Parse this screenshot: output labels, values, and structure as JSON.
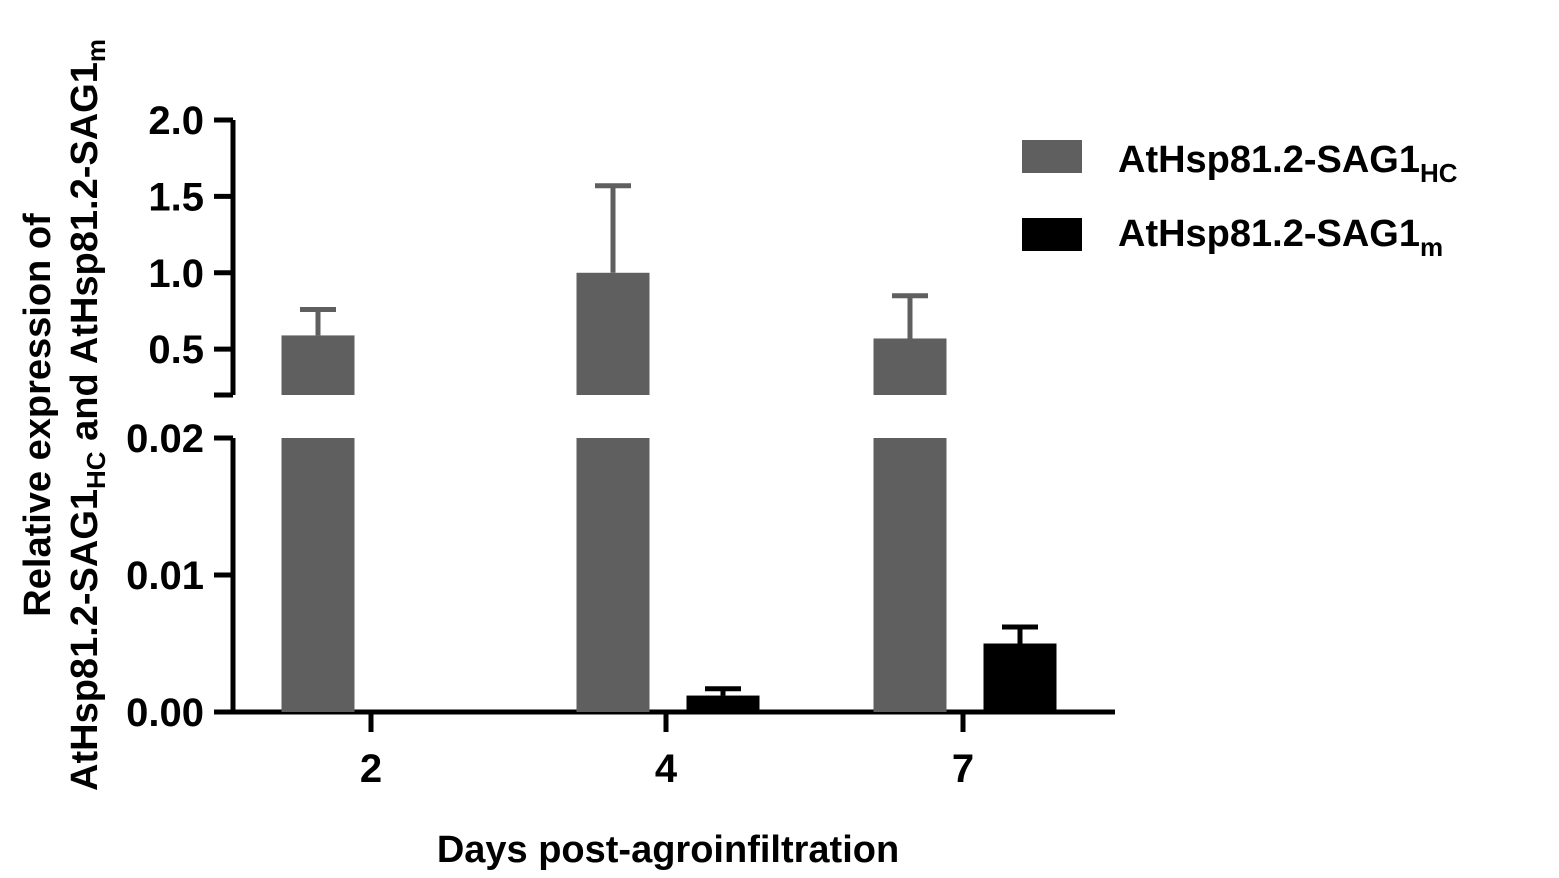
{
  "chart_data": {
    "type": "bar",
    "categories": [
      "2",
      "4",
      "7"
    ],
    "xlabel": "Days post-agroinfiltration",
    "ylabel": {
      "line1": "Relative expression of",
      "line2_main_a": "AtHsp81.2-SAG1",
      "line2_sub_a": "HC",
      "line2_mid": " and AtHsp81.2-SAG1",
      "line2_sub_b": "m"
    },
    "y_axis_broken": true,
    "lower_segment": {
      "ylim": [
        0,
        0.02
      ],
      "ticks": [
        "0.00",
        "0.01",
        "0.02"
      ]
    },
    "upper_segment": {
      "ylim": [
        0.2,
        2.0
      ],
      "ticks": [
        "0.5",
        "1.0",
        "1.5",
        "2.0"
      ]
    },
    "series": [
      {
        "name": "AtHsp81.2-SAG1",
        "name_sub": "HC",
        "color": "#5f5f5f",
        "values": [
          0.59,
          1.0,
          0.57
        ],
        "errors": [
          0.17,
          0.57,
          0.28
        ]
      },
      {
        "name": "AtHsp81.2-SAG1",
        "name_sub": "m",
        "color": "#000000",
        "values": [
          0.0,
          0.0012,
          0.005
        ],
        "errors": [
          0.0,
          0.0005,
          0.0012
        ]
      }
    ],
    "legend": {
      "position": "top-right"
    }
  }
}
